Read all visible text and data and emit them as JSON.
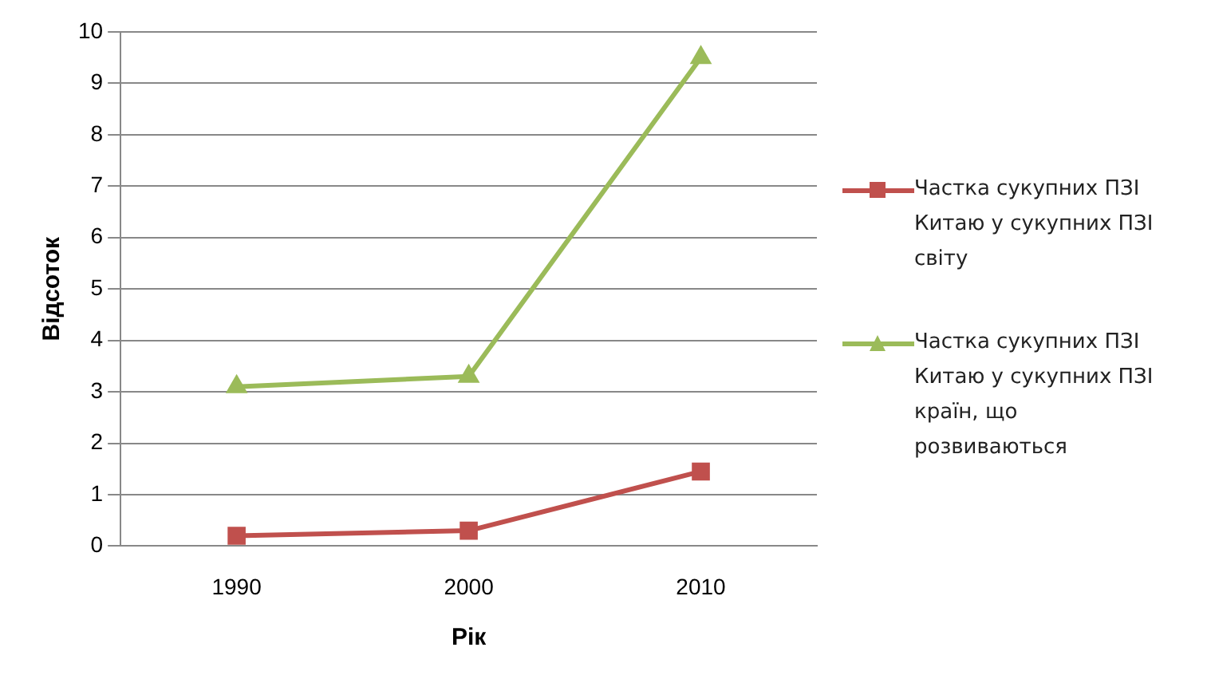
{
  "chart_data": {
    "type": "line",
    "xlabel": "Рік",
    "ylabel": "Відсоток",
    "categories": [
      "1990",
      "2000",
      "2010"
    ],
    "series": [
      {
        "name": "Частка сукупних ПЗІ Китаю у сукупних ПЗІ світу",
        "color": "#c0504d",
        "marker": "square",
        "values": [
          0.2,
          0.3,
          1.45
        ]
      },
      {
        "name": "Частка сукупних ПЗІ Китаю у сукупних ПЗІ країн, що розвиваються",
        "color": "#9bbb59",
        "marker": "triangle",
        "values": [
          3.1,
          3.3,
          9.5
        ]
      }
    ],
    "ylim": [
      0,
      10
    ],
    "yticks": [
      0,
      1,
      2,
      3,
      4,
      5,
      6,
      7,
      8,
      9,
      10
    ],
    "grid": "y",
    "legend": "right",
    "line_style": "solid"
  }
}
